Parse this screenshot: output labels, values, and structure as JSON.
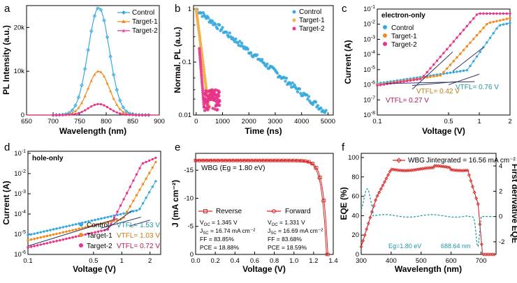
{
  "colors": {
    "control": "#35a9de",
    "target1": "#f08a1c",
    "target2": "#e8338a",
    "wbg": "#d62828",
    "deriv": "#1d95a3",
    "fit": "#333366"
  },
  "panel_letters": [
    "a",
    "b",
    "c",
    "d",
    "e",
    "f"
  ],
  "chart_data": [
    {
      "id": "a",
      "type": "line",
      "xlabel": "Wavelength (nm)",
      "ylabel": "PL Intensity (a.u.)",
      "xlim": [
        650,
        900
      ],
      "ylim": [
        0,
        25000
      ],
      "xticks": [
        "650",
        "700",
        "750",
        "800",
        "850",
        "900"
      ],
      "yticks": [
        "0",
        "10k",
        "20k"
      ],
      "legend": [
        "Control",
        "Target-1",
        "Target-2"
      ],
      "series": [
        {
          "name": "Control",
          "peak_nm": 786,
          "peak": 24500,
          "width": 20
        },
        {
          "name": "Target-1",
          "peak_nm": 786,
          "peak": 10000,
          "width": 20
        },
        {
          "name": "Target-2",
          "peak_nm": 786,
          "peak": 2500,
          "width": 20
        }
      ]
    },
    {
      "id": "b",
      "type": "scatter",
      "xlabel": "Time (ns)",
      "ylabel": "Normal. PL (a.u.)",
      "xlim": [
        0,
        5200
      ],
      "ylim": [
        0.01,
        1
      ],
      "xticks": [
        "0",
        "1000",
        "2000",
        "3000",
        "4000",
        "5000"
      ],
      "yticks": [
        "0.01",
        "0.1",
        "1"
      ],
      "legend": [
        "Control",
        "Target-1",
        "Target-2"
      ],
      "series": [
        {
          "name": "Control",
          "tau_ns": 1100,
          "end_ns": 5000
        },
        {
          "name": "Target-1",
          "tau_ns": 110,
          "end_ns": 500
        },
        {
          "name": "Target-2",
          "tau_ns": 70,
          "end_ns": 900
        }
      ]
    },
    {
      "id": "c",
      "type": "line",
      "title": "electron-only",
      "xlabel": "Voltage (V)",
      "ylabel": "Current (A)",
      "xlim": [
        0.1,
        2
      ],
      "ylim": [
        1e-08,
        0.1
      ],
      "log_x": true,
      "log_y": true,
      "xticks": [
        "0.1",
        "0.5",
        "1",
        "2"
      ],
      "yticks": [
        "10^-8",
        "10^-7",
        "10^-6",
        "10^-5",
        "10^-4",
        "10^-3",
        "10^-2",
        "10^-1"
      ],
      "legend": [
        "Control",
        "Target-1",
        "Target-2"
      ],
      "annotations": [
        {
          "label": "VTFL= 0.76 V",
          "value": 0.76,
          "series": "Control"
        },
        {
          "label": "VTFL= 0.42 V",
          "value": 0.42,
          "series": "Target-1"
        },
        {
          "label": "VTFL= 0.27 V",
          "value": 0.27,
          "series": "Target-2"
        }
      ]
    },
    {
      "id": "d",
      "type": "line",
      "title": "hole-only",
      "xlabel": "Voltage (V)",
      "ylabel": "Current (A)",
      "xlim": [
        0.1,
        3
      ],
      "ylim": [
        1e-06,
        0.1
      ],
      "log_x": true,
      "log_y": true,
      "xticks": [
        "0.1",
        "0.5",
        "1",
        "2"
      ],
      "yticks": [
        "10^-6",
        "10^-5",
        "10^-4",
        "10^-3",
        "10^-2",
        "10^-1"
      ],
      "legend": [
        "Control",
        "Target-1",
        "Target-2"
      ],
      "annotations": [
        {
          "label": "VTFL= 1.53 V",
          "value": 1.53,
          "series": "Control"
        },
        {
          "label": "VTFL= 1.03 V",
          "value": 1.03,
          "series": "Target-1"
        },
        {
          "label": "VTFL= 0.72 V",
          "value": 0.72,
          "series": "Target-2"
        }
      ]
    },
    {
      "id": "e",
      "type": "line",
      "xlabel": "Voltage (V)",
      "ylabel": "J (mA cm⁻²)",
      "xlim": [
        0,
        1.4
      ],
      "ylim": [
        0,
        -18
      ],
      "xticks": [
        "0.0",
        "0.2",
        "0.4",
        "0.6",
        "0.8",
        "1.0",
        "1.2",
        "1.4"
      ],
      "yticks": [
        "0",
        "-5",
        "-10",
        "-15"
      ],
      "inset_label": "WBG (Eg = 1.80 eV)",
      "series": [
        {
          "name": "Reverse",
          "Voc": "1.345 V",
          "Jsc": "16.74 mA cm⁻²",
          "FF": "83.85%",
          "PCE": "18.88%"
        },
        {
          "name": "Forward",
          "Voc": "1.331 V",
          "Jsc": "16.69 mA cm⁻²",
          "FF": "83.68%",
          "PCE": "18.59%"
        }
      ]
    },
    {
      "id": "f",
      "type": "line",
      "xlabel": "Wavelength (nm)",
      "ylabel": "EQE (%)",
      "ylabel_right": "First derivative EQE",
      "xlim": [
        300,
        750
      ],
      "ylim": [
        0,
        100
      ],
      "ylim_right": [
        -3,
        5
      ],
      "xticks": [
        "300",
        "400",
        "500",
        "600",
        "700"
      ],
      "yticks": [
        "0",
        "20",
        "40",
        "60",
        "80",
        "100"
      ],
      "yticks_right": [
        "-2",
        "0",
        "2",
        "4"
      ],
      "legend": "WBG",
      "jint": "Jintegrated = 16.56 mA cm⁻²",
      "eg_label": "Eg=1.80 eV",
      "edge_label": "688.64 nm"
    }
  ]
}
